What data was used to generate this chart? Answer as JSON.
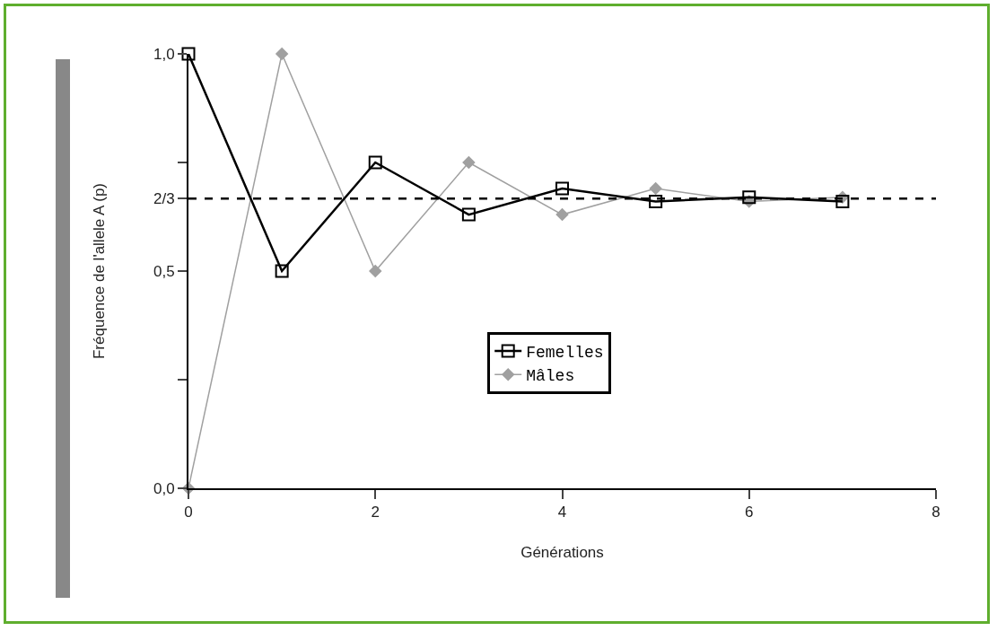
{
  "chart_data": {
    "type": "line",
    "xlabel": "Générations",
    "ylabel": "Fréquence de l'allele A (p)",
    "x": [
      0,
      1,
      2,
      3,
      4,
      5,
      6,
      7
    ],
    "series": [
      {
        "name": "Femelles",
        "color": "#000000",
        "marker": "square",
        "values": [
          1.0,
          0.5,
          0.75,
          0.63,
          0.69,
          0.66,
          0.67,
          0.66
        ]
      },
      {
        "name": "Mâles",
        "color": "#a0a0a0",
        "marker": "diamond",
        "values": [
          0.0,
          1.0,
          0.5,
          0.75,
          0.63,
          0.69,
          0.66,
          0.67
        ]
      }
    ],
    "xlim": [
      0,
      8
    ],
    "xticks": [
      0,
      2,
      4,
      6,
      8
    ],
    "ylim": [
      0,
      1
    ],
    "yticks": [
      {
        "value": 0,
        "label": "0,0"
      },
      {
        "value": 0.25,
        "label": null
      },
      {
        "value": 0.5,
        "label": "0,5"
      },
      {
        "value": 0.667,
        "label": "2/3"
      },
      {
        "value": 0.75,
        "label": null
      },
      {
        "value": 1,
        "label": "1,0"
      }
    ],
    "ref_lines": [
      {
        "axis": "y",
        "value": 0.667,
        "color": "#000000",
        "line_style": "dashed"
      }
    ],
    "grid": false,
    "legend": "bottom right",
    "line_style": "solid"
  }
}
